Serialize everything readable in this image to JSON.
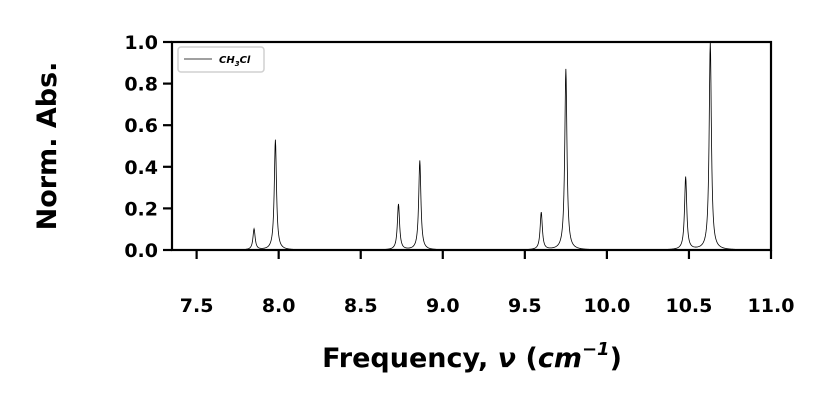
{
  "chart_data": {
    "type": "line",
    "xlabel": "Frequency, ν (cm⁻¹)",
    "xlabel_prefix": "Frequency, ",
    "xlabel_symbol": "ν",
    "xlabel_unit": "cm",
    "xlabel_exponent": "−1",
    "ylabel": "Norm. Abs.",
    "xlim": [
      7.35,
      11.0
    ],
    "ylim": [
      0.0,
      1.0
    ],
    "x_ticks": [
      "7.5",
      "8.0",
      "8.5",
      "9.0",
      "9.5",
      "10.0",
      "10.5",
      "11.0"
    ],
    "y_ticks": [
      "0.0",
      "0.2",
      "0.4",
      "0.6",
      "0.8",
      "1.0"
    ],
    "grid": false,
    "legend_position": "top-left",
    "series": [
      {
        "name": "CH3Cl",
        "name_base": "CH",
        "name_sub": "3",
        "name_tail": "Cl",
        "color": "#000000",
        "peaks": [
          {
            "x": 7.85,
            "y": 0.1
          },
          {
            "x": 7.98,
            "y": 0.53
          },
          {
            "x": 8.73,
            "y": 0.22
          },
          {
            "x": 8.86,
            "y": 0.43
          },
          {
            "x": 9.6,
            "y": 0.18
          },
          {
            "x": 9.75,
            "y": 0.87
          },
          {
            "x": 10.48,
            "y": 0.35
          },
          {
            "x": 10.63,
            "y": 1.0
          }
        ],
        "peak_width": 0.008
      }
    ]
  }
}
